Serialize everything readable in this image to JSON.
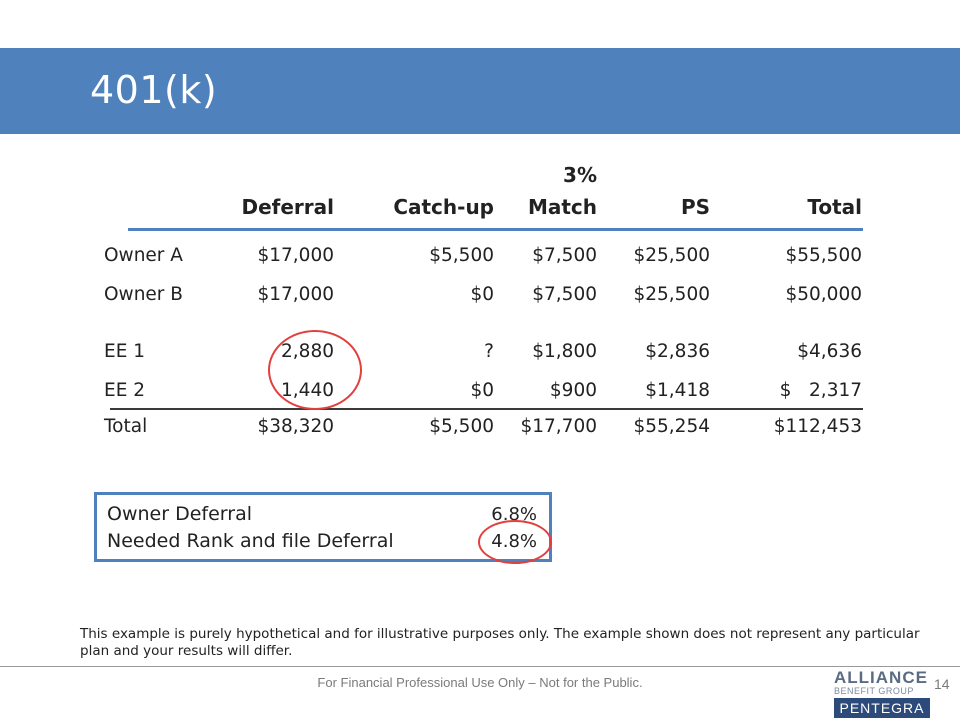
{
  "title": "401(k)",
  "table": {
    "headers": {
      "deferral": "Deferral",
      "catchup": "Catch-up",
      "match_top": "3%",
      "match": "Match",
      "ps": "PS",
      "total": "Total"
    },
    "rows": [
      {
        "name": "Owner A",
        "deferral": "$17,000",
        "catchup": "$5,500",
        "match": "$7,500",
        "ps": "$25,500",
        "total": "$55,500"
      },
      {
        "name": "Owner B",
        "deferral": "$17,000",
        "catchup": "$0",
        "match": "$7,500",
        "ps": "$25,500",
        "total": "$50,000"
      },
      {
        "name": "EE 1",
        "deferral": "2,880",
        "catchup": "?",
        "match": "$1,800",
        "ps": "$2,836",
        "total": "$4,636"
      },
      {
        "name": "EE 2",
        "deferral": "1,440",
        "catchup": "$0",
        "match": "$900",
        "ps": "$1,418",
        "total": "$   2,317"
      },
      {
        "name": "Total",
        "deferral": "$38,320",
        "catchup": "$5,500",
        "match": "$17,700",
        "ps": "$55,254",
        "total": "$112,453"
      }
    ]
  },
  "summary": {
    "owner_label": "Owner Deferral",
    "owner_value": "6.8%",
    "needed_label": "Needed Rank and file Deferral",
    "needed_value": "4.8%"
  },
  "disclaimer": "This example is purely hypothetical and for illustrative purposes only. The example shown does not represent any particular plan and your results will differ.",
  "footer": "For Financial Professional Use Only – Not for the Public.",
  "page_number": "14",
  "logo": {
    "line1": "ALLIANCE",
    "line2": "BENEFIT GROUP",
    "line3": "PENTEGRA"
  },
  "colors": {
    "accent": "#4f81bd",
    "highlight": "#e0403e"
  }
}
